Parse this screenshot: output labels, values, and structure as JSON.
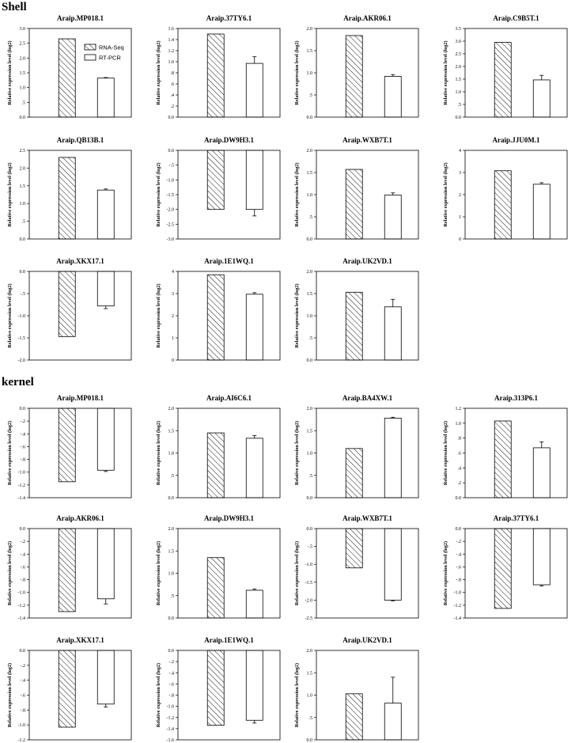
{
  "sections": [
    {
      "id": "shell",
      "title": "Shell"
    },
    {
      "id": "kernel",
      "title": "kernel"
    }
  ],
  "legend": {
    "rna_label": "RNA-Seq",
    "rt_label": "RT-PCR"
  },
  "y_axis_label": "Relative expression level (log2)",
  "chart_data": [
    {
      "type": "bar",
      "section": "shell",
      "title": "Araip.MP018.1",
      "ylim": [
        0,
        3.0
      ],
      "ticks": [
        0,
        0.5,
        1.0,
        1.5,
        2.0,
        2.5,
        3.0
      ],
      "tick_labels": [
        "0.0",
        ".5",
        "1.0",
        "1.5",
        "2.0",
        "2.5",
        "3.0"
      ],
      "series": [
        {
          "name": "RNA-Seq",
          "values": [
            2.65
          ]
        },
        {
          "name": "RT-PCR",
          "values": [
            1.32
          ],
          "error": [
            0.02
          ]
        }
      ],
      "show_legend": true
    },
    {
      "type": "bar",
      "section": "shell",
      "title": "Araip.37TY6.1",
      "ylim": [
        0,
        1.6
      ],
      "ticks": [
        0,
        0.2,
        0.4,
        0.6,
        0.8,
        1.0,
        1.2,
        1.4,
        1.6
      ],
      "tick_labels": [
        "0.0",
        ".2",
        ".4",
        ".6",
        ".8",
        "1.0",
        "1.2",
        "1.4",
        "1.6"
      ],
      "series": [
        {
          "name": "RNA-Seq",
          "values": [
            1.5
          ]
        },
        {
          "name": "RT-PCR",
          "values": [
            0.97
          ],
          "error": [
            0.12
          ]
        }
      ]
    },
    {
      "type": "bar",
      "section": "shell",
      "title": "Araip.AKR06.1",
      "ylim": [
        0,
        2.0
      ],
      "ticks": [
        0,
        0.5,
        1.0,
        1.5,
        2.0
      ],
      "tick_labels": [
        "0.0",
        ".5",
        "1.0",
        "1.5",
        "2.0"
      ],
      "series": [
        {
          "name": "RNA-Seq",
          "values": [
            1.84
          ]
        },
        {
          "name": "RT-PCR",
          "values": [
            0.92
          ],
          "error": [
            0.04
          ]
        }
      ]
    },
    {
      "type": "bar",
      "section": "shell",
      "title": "Araip.C9B5T.1",
      "ylim": [
        0,
        3.5
      ],
      "ticks": [
        0,
        0.5,
        1.0,
        1.5,
        2.0,
        2.5,
        3.0,
        3.5
      ],
      "tick_labels": [
        "0.0",
        ".5",
        "1.0",
        "1.5",
        "2.0",
        "2.5",
        "3.0",
        "3.5"
      ],
      "series": [
        {
          "name": "RNA-Seq",
          "values": [
            2.95
          ]
        },
        {
          "name": "RT-PCR",
          "values": [
            1.47
          ],
          "error": [
            0.18
          ]
        }
      ]
    },
    {
      "type": "bar",
      "section": "shell",
      "title": "Araip.QB13B.1",
      "ylim": [
        0,
        2.5
      ],
      "ticks": [
        0,
        0.5,
        1.0,
        1.5,
        2.0,
        2.5
      ],
      "tick_labels": [
        "0.0",
        ".5",
        "1.0",
        "1.5",
        "2.0",
        "2.5"
      ],
      "series": [
        {
          "name": "RNA-Seq",
          "values": [
            2.3
          ]
        },
        {
          "name": "RT-PCR",
          "values": [
            1.38
          ],
          "error": [
            0.03
          ]
        }
      ]
    },
    {
      "type": "bar",
      "section": "shell",
      "title": "Araip.DW9H3.1",
      "ylim": [
        -3.0,
        0
      ],
      "ticks": [
        0,
        -0.5,
        -1.0,
        -1.5,
        -2.0,
        -2.5,
        -3.0
      ],
      "tick_labels": [
        "0.0",
        "-.5",
        "-1.0",
        "-1.5",
        "-2.0",
        "-2.5",
        "-3.0"
      ],
      "series": [
        {
          "name": "RNA-Seq",
          "values": [
            -2.0
          ]
        },
        {
          "name": "RT-PCR",
          "values": [
            -2.0
          ],
          "error": [
            0.22
          ]
        }
      ]
    },
    {
      "type": "bar",
      "section": "shell",
      "title": "Araip.WXB7T.1",
      "ylim": [
        0,
        2.0
      ],
      "ticks": [
        0,
        0.5,
        1.0,
        1.5,
        2.0
      ],
      "tick_labels": [
        "0.0",
        ".5",
        "1.0",
        "1.5",
        "2.0"
      ],
      "series": [
        {
          "name": "RNA-Seq",
          "values": [
            1.57
          ]
        },
        {
          "name": "RT-PCR",
          "values": [
            0.99
          ],
          "error": [
            0.05
          ]
        }
      ]
    },
    {
      "type": "bar",
      "section": "shell",
      "title": "Araip.JJU0M.1",
      "ylim": [
        0,
        4
      ],
      "ticks": [
        0,
        1,
        2,
        3,
        4
      ],
      "tick_labels": [
        "0",
        "1",
        "2",
        "3",
        "4"
      ],
      "series": [
        {
          "name": "RNA-Seq",
          "values": [
            3.08
          ]
        },
        {
          "name": "RT-PCR",
          "values": [
            2.47
          ],
          "error": [
            0.07
          ]
        }
      ]
    },
    {
      "type": "bar",
      "section": "shell",
      "title": "Araip.XKX17.1",
      "ylim": [
        -2.0,
        0
      ],
      "ticks": [
        0,
        -0.5,
        -1.0,
        -1.5,
        -2.0
      ],
      "tick_labels": [
        "0.0",
        "-.5",
        "-1.0",
        "-1.5",
        "-2.0"
      ],
      "series": [
        {
          "name": "RNA-Seq",
          "values": [
            -1.47
          ]
        },
        {
          "name": "RT-PCR",
          "values": [
            -0.78
          ],
          "error": [
            0.06
          ]
        }
      ]
    },
    {
      "type": "bar",
      "section": "shell",
      "title": "Araip.1E1WQ.1",
      "ylim": [
        0,
        4
      ],
      "ticks": [
        0,
        1,
        2,
        3,
        4
      ],
      "tick_labels": [
        "0",
        "1",
        "2",
        "3",
        "4"
      ],
      "series": [
        {
          "name": "RNA-Seq",
          "values": [
            3.85
          ]
        },
        {
          "name": "RT-PCR",
          "values": [
            2.97
          ],
          "error": [
            0.07
          ]
        }
      ]
    },
    {
      "type": "bar",
      "section": "shell",
      "title": "Araip.UK2VD.1",
      "ylim": [
        0,
        2.0
      ],
      "ticks": [
        0,
        0.5,
        1.0,
        1.5,
        2.0
      ],
      "tick_labels": [
        "0.0",
        ".5",
        "1.0",
        "1.5",
        "2.0"
      ],
      "series": [
        {
          "name": "RNA-Seq",
          "values": [
            1.53
          ]
        },
        {
          "name": "RT-PCR",
          "values": [
            1.2
          ],
          "error": [
            0.17
          ]
        }
      ]
    },
    {
      "type": "bar",
      "section": "kernel",
      "title": "Araip.MP018.1",
      "ylim": [
        -1.4,
        0
      ],
      "ticks": [
        0,
        -0.2,
        -0.4,
        -0.6,
        -0.8,
        -1.0,
        -1.2,
        -1.4
      ],
      "tick_labels": [
        "0.0",
        "-.2",
        "-.4",
        "-.6",
        "-.8",
        "-1.0",
        "-1.2",
        "-1.4"
      ],
      "series": [
        {
          "name": "RNA-Seq",
          "values": [
            -1.15
          ]
        },
        {
          "name": "RT-PCR",
          "values": [
            -0.97
          ],
          "error": [
            0.02
          ]
        }
      ]
    },
    {
      "type": "bar",
      "section": "kernel",
      "title": "Araip.AI6C6.1",
      "ylim": [
        0,
        2.0
      ],
      "ticks": [
        0,
        0.5,
        1.0,
        1.5,
        2.0
      ],
      "tick_labels": [
        "0.0",
        ".5",
        "1.0",
        "1.5",
        "2.0"
      ],
      "series": [
        {
          "name": "RNA-Seq",
          "values": [
            1.45
          ]
        },
        {
          "name": "RT-PCR",
          "values": [
            1.33
          ],
          "error": [
            0.06
          ]
        }
      ]
    },
    {
      "type": "bar",
      "section": "kernel",
      "title": "Araip.BA4XW.1",
      "ylim": [
        0,
        2.0
      ],
      "ticks": [
        0,
        0.5,
        1.0,
        1.5,
        2.0
      ],
      "tick_labels": [
        "0.0",
        ".5",
        "1.0",
        "1.5",
        "2.0"
      ],
      "series": [
        {
          "name": "RNA-Seq",
          "values": [
            1.1
          ]
        },
        {
          "name": "RT-PCR",
          "values": [
            1.78
          ],
          "error": [
            0.02
          ]
        }
      ]
    },
    {
      "type": "bar",
      "section": "kernel",
      "title": "Araip.313P6.1",
      "ylim": [
        0,
        1.2
      ],
      "ticks": [
        0,
        0.2,
        0.4,
        0.6,
        0.8,
        1.0,
        1.2
      ],
      "tick_labels": [
        "0.0",
        ".2",
        ".4",
        ".6",
        ".8",
        "1.0",
        "1.2"
      ],
      "series": [
        {
          "name": "RNA-Seq",
          "values": [
            1.03
          ]
        },
        {
          "name": "RT-PCR",
          "values": [
            0.67
          ],
          "error": [
            0.08
          ]
        }
      ]
    },
    {
      "type": "bar",
      "section": "kernel",
      "title": "Araip.AKR06.1",
      "ylim": [
        -1.4,
        0
      ],
      "ticks": [
        0,
        -0.2,
        -0.4,
        -0.6,
        -0.8,
        -1.0,
        -1.2,
        -1.4
      ],
      "tick_labels": [
        "0.0",
        "-.2",
        "-.4",
        "-.6",
        "-.8",
        "-1.0",
        "-1.2",
        "-1.4"
      ],
      "series": [
        {
          "name": "RNA-Seq",
          "values": [
            -1.3
          ]
        },
        {
          "name": "RT-PCR",
          "values": [
            -1.1
          ],
          "error": [
            0.08
          ]
        }
      ]
    },
    {
      "type": "bar",
      "section": "kernel",
      "title": "Araip.DW9H3.1",
      "ylim": [
        0,
        2.0
      ],
      "ticks": [
        0,
        0.5,
        1.0,
        1.5,
        2.0
      ],
      "tick_labels": [
        "0.0",
        ".5",
        "1.0",
        "1.5",
        "2.0"
      ],
      "series": [
        {
          "name": "RNA-Seq",
          "values": [
            1.35
          ]
        },
        {
          "name": "RT-PCR",
          "values": [
            0.62
          ],
          "error": [
            0.03
          ]
        }
      ]
    },
    {
      "type": "bar",
      "section": "kernel",
      "title": "Araip.WXB7T.1",
      "ylim": [
        -2.5,
        0
      ],
      "ticks": [
        0,
        -0.5,
        -1.0,
        -1.5,
        -2.0,
        -2.5
      ],
      "tick_labels": [
        "0.0",
        "-.5",
        "-1.0",
        "-1.5",
        "-2.0",
        "-2.5"
      ],
      "series": [
        {
          "name": "RNA-Seq",
          "values": [
            -1.1
          ]
        },
        {
          "name": "RT-PCR",
          "values": [
            -2.0
          ],
          "error": [
            0.02
          ]
        }
      ]
    },
    {
      "type": "bar",
      "section": "kernel",
      "title": "Araip.37TY6.1",
      "ylim": [
        -1.4,
        0
      ],
      "ticks": [
        0,
        -0.2,
        -0.4,
        -0.6,
        -0.8,
        -1.0,
        -1.2,
        -1.4
      ],
      "tick_labels": [
        "0.0",
        "-.2",
        "-.4",
        "-.6",
        "-.8",
        "-1.0",
        "-1.2",
        "-1.4"
      ],
      "series": [
        {
          "name": "RNA-Seq",
          "values": [
            -1.25
          ]
        },
        {
          "name": "RT-PCR",
          "values": [
            -0.88
          ],
          "error": [
            0.02
          ]
        }
      ]
    },
    {
      "type": "bar",
      "section": "kernel",
      "title": "Araip.XKX17.1",
      "ylim": [
        -1.2,
        0
      ],
      "ticks": [
        0,
        -0.2,
        -0.4,
        -0.6,
        -0.8,
        -1.0,
        -1.2
      ],
      "tick_labels": [
        "0.0",
        "-.2",
        "-.4",
        "-.6",
        "-.8",
        "-1.0",
        "-1.2"
      ],
      "series": [
        {
          "name": "RNA-Seq",
          "values": [
            -1.03
          ]
        },
        {
          "name": "RT-PCR",
          "values": [
            -0.72
          ],
          "error": [
            0.04
          ]
        }
      ]
    },
    {
      "type": "bar",
      "section": "kernel",
      "title": "Araip.1E1WQ.1",
      "ylim": [
        -1.6,
        0
      ],
      "ticks": [
        0,
        -0.2,
        -0.4,
        -0.6,
        -0.8,
        -1.0,
        -1.2,
        -1.4,
        -1.6
      ],
      "tick_labels": [
        "0.0",
        "-.2",
        "-.4",
        "-.6",
        "-.8",
        "-1.0",
        "-1.2",
        "-1.4",
        "-1.6"
      ],
      "series": [
        {
          "name": "RNA-Seq",
          "values": [
            -1.34
          ]
        },
        {
          "name": "RT-PCR",
          "values": [
            -1.25
          ],
          "error": [
            0.05
          ]
        }
      ]
    },
    {
      "type": "bar",
      "section": "kernel",
      "title": "Araip.UK2VD.1",
      "ylim": [
        0,
        2.0
      ],
      "ticks": [
        0,
        0.5,
        1.0,
        1.5,
        2.0
      ],
      "tick_labels": [
        "0.0",
        ".5",
        "1.0",
        "1.5",
        "2.0"
      ],
      "series": [
        {
          "name": "RNA-Seq",
          "values": [
            1.03
          ]
        },
        {
          "name": "RT-PCR",
          "values": [
            0.82
          ],
          "error": [
            0.58
          ]
        }
      ]
    }
  ]
}
